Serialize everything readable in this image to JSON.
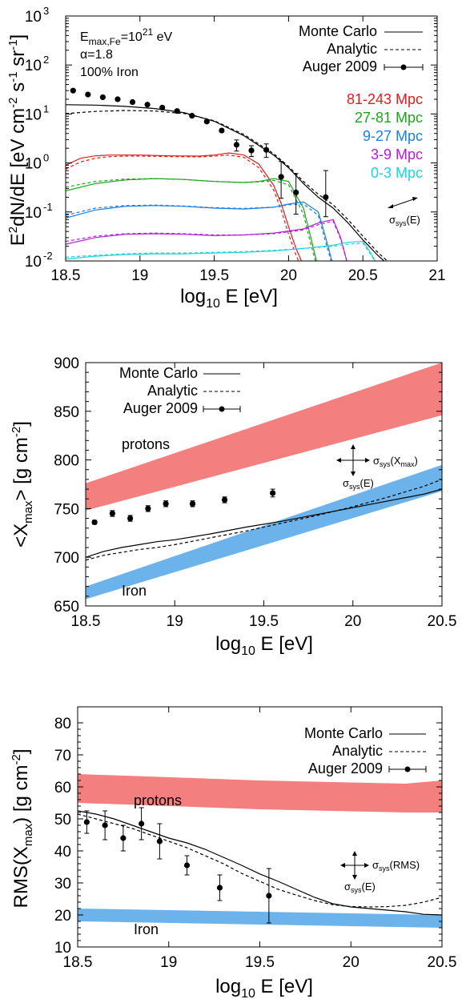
{
  "chart_data": [
    {
      "type": "line",
      "xlabel": "log10 E [eV]",
      "ylabel": "E2dN/dE [eV cm-2 s-1 sr-1]",
      "xlim": [
        18.5,
        21
      ],
      "ylim": [
        0.01,
        1000
      ],
      "yscale": "log",
      "xticks": [
        "18.5",
        "19",
        "19.5",
        "20",
        "20.5",
        "21"
      ],
      "yticks": [
        {
          "base": "10",
          "exp": "-2",
          "v": 0.01
        },
        {
          "base": "10",
          "exp": "-1",
          "v": 0.1
        },
        {
          "base": "10",
          "exp": "0",
          "v": 1
        },
        {
          "base": "10",
          "exp": "1",
          "v": 10
        },
        {
          "base": "10",
          "exp": "2",
          "v": 100
        },
        {
          "base": "10",
          "exp": "3",
          "v": 1000
        }
      ],
      "annotation": {
        "emax_base": "E",
        "emax_sub": "max,Fe",
        "emax_eq": "=10",
        "emax_exp": "21",
        "emax_unit": " eV",
        "alpha": "α=1.8",
        "composition": "100% Iron"
      },
      "legend": {
        "placement": "top-right",
        "mc": "Monte Carlo",
        "an": "Analytic",
        "auger": "Auger 2009"
      },
      "sys_label": {
        "base": "σ",
        "sub": "sys",
        "rest": "(E)"
      },
      "series": [
        {
          "name": "Monte Carlo",
          "role": "total-mc",
          "color": "#000000",
          "dash": false,
          "x": [
            18.5,
            18.7,
            18.9,
            19.1,
            19.3,
            19.5,
            19.7,
            19.9,
            20.0,
            20.1,
            20.2,
            20.3,
            20.4,
            20.5,
            20.6,
            20.7
          ],
          "y": [
            15.5,
            15.2,
            14.3,
            12.9,
            10.6,
            7.1,
            3.6,
            1.45,
            0.8,
            0.38,
            0.2,
            0.12,
            0.06,
            0.027,
            0.013,
            0.007
          ]
        },
        {
          "name": "Analytic",
          "role": "total-an",
          "color": "#000000",
          "dash": true,
          "x": [
            18.5,
            18.7,
            18.9,
            19.1,
            19.3,
            19.5,
            19.7,
            19.9,
            20.0,
            20.1,
            20.2,
            20.3,
            20.4,
            20.5,
            20.6,
            20.7
          ],
          "y": [
            10.2,
            11.3,
            11.8,
            11.5,
            10.2,
            7.3,
            3.8,
            1.55,
            0.85,
            0.42,
            0.23,
            0.14,
            0.07,
            0.032,
            0.015,
            0.008
          ]
        },
        {
          "name": "81-243 Mpc",
          "color": "#e41a1c",
          "dash": false,
          "x": [
            18.5,
            18.6,
            18.7,
            18.8,
            18.9,
            19.0,
            19.2,
            19.4,
            19.5,
            19.6,
            19.7,
            19.8,
            19.9,
            19.95,
            20.0,
            20.05,
            20.1
          ],
          "y": [
            0.9,
            1.25,
            1.4,
            1.45,
            1.45,
            1.45,
            1.4,
            1.38,
            1.45,
            1.6,
            1.45,
            0.95,
            0.35,
            0.15,
            0.05,
            0.018,
            0.008
          ]
        },
        {
          "name": "81-243 Mpc",
          "color": "#e41a1c",
          "dash": true,
          "x": [
            18.5,
            18.6,
            18.7,
            18.8,
            18.9,
            19.0,
            19.2,
            19.4,
            19.5,
            19.6,
            19.7,
            19.8,
            19.9,
            19.95,
            20.0,
            20.05,
            20.1
          ],
          "y": [
            0.75,
            1.05,
            1.25,
            1.35,
            1.38,
            1.38,
            1.35,
            1.33,
            1.38,
            1.45,
            1.3,
            0.8,
            0.28,
            0.11,
            0.035,
            0.013,
            0.006
          ]
        },
        {
          "name": "27-81 Mpc",
          "color": "#1fa21f",
          "dash": false,
          "x": [
            18.5,
            18.7,
            18.9,
            19.1,
            19.3,
            19.5,
            19.7,
            19.8,
            19.9,
            20.0,
            20.1,
            20.15,
            20.2
          ],
          "y": [
            0.27,
            0.38,
            0.45,
            0.48,
            0.46,
            0.42,
            0.4,
            0.42,
            0.48,
            0.42,
            0.12,
            0.03,
            0.007
          ]
        },
        {
          "name": "27-81 Mpc",
          "color": "#1fa21f",
          "dash": true,
          "x": [
            18.5,
            18.7,
            18.9,
            19.1,
            19.3,
            19.5,
            19.7,
            19.8,
            19.9,
            20.0,
            20.1,
            20.15,
            20.2
          ],
          "y": [
            0.32,
            0.42,
            0.47,
            0.48,
            0.46,
            0.42,
            0.4,
            0.41,
            0.44,
            0.36,
            0.09,
            0.022,
            0.006
          ]
        },
        {
          "name": "9-27 Mpc",
          "color": "#1c7fe0",
          "dash": false,
          "x": [
            18.5,
            18.7,
            18.9,
            19.1,
            19.3,
            19.5,
            19.7,
            19.9,
            20.0,
            20.1,
            20.2,
            20.25,
            20.3
          ],
          "y": [
            0.075,
            0.11,
            0.13,
            0.135,
            0.13,
            0.12,
            0.115,
            0.125,
            0.145,
            0.16,
            0.1,
            0.03,
            0.008
          ]
        },
        {
          "name": "9-27 Mpc",
          "color": "#1c7fe0",
          "dash": true,
          "x": [
            18.5,
            18.7,
            18.9,
            19.1,
            19.3,
            19.5,
            19.7,
            19.9,
            20.0,
            20.1,
            20.2,
            20.25,
            20.3
          ],
          "y": [
            0.085,
            0.12,
            0.135,
            0.138,
            0.132,
            0.122,
            0.118,
            0.126,
            0.14,
            0.145,
            0.085,
            0.024,
            0.007
          ]
        },
        {
          "name": "3-9 Mpc",
          "color": "#b01fd6",
          "dash": false,
          "x": [
            18.5,
            18.7,
            18.9,
            19.1,
            19.3,
            19.5,
            19.7,
            19.9,
            20.1,
            20.2,
            20.3,
            20.35,
            20.4
          ],
          "y": [
            0.022,
            0.03,
            0.035,
            0.036,
            0.035,
            0.033,
            0.034,
            0.037,
            0.045,
            0.06,
            0.07,
            0.03,
            0.008
          ]
        },
        {
          "name": "3-9 Mpc",
          "color": "#b01fd6",
          "dash": true,
          "x": [
            18.5,
            18.7,
            18.9,
            19.1,
            19.3,
            19.5,
            19.7,
            19.9,
            20.1,
            20.2,
            20.3,
            20.35,
            20.4
          ],
          "y": [
            0.025,
            0.032,
            0.036,
            0.037,
            0.036,
            0.034,
            0.034,
            0.036,
            0.043,
            0.055,
            0.065,
            0.028,
            0.008
          ]
        },
        {
          "name": "0-3 Mpc",
          "color": "#22d3d8",
          "dash": false,
          "x": [
            18.5,
            18.7,
            18.9,
            19.1,
            19.3,
            19.5,
            19.7,
            19.9,
            20.1,
            20.3,
            20.4,
            20.5,
            20.55,
            20.6
          ],
          "y": [
            0.011,
            0.0125,
            0.0135,
            0.014,
            0.014,
            0.0145,
            0.015,
            0.016,
            0.018,
            0.021,
            0.024,
            0.025,
            0.015,
            0.008
          ]
        },
        {
          "name": "0-3 Mpc",
          "color": "#22d3d8",
          "dash": true,
          "x": [
            18.5,
            18.7,
            18.9,
            19.1,
            19.3,
            19.5,
            19.7,
            19.9,
            20.1,
            20.3,
            20.4,
            20.5,
            20.55,
            20.6
          ],
          "y": [
            0.012,
            0.013,
            0.014,
            0.0145,
            0.0145,
            0.015,
            0.0155,
            0.0165,
            0.018,
            0.02,
            0.022,
            0.023,
            0.014,
            0.008
          ]
        }
      ],
      "auger": {
        "x": [
          18.55,
          18.65,
          18.75,
          18.85,
          18.95,
          19.05,
          19.15,
          19.25,
          19.35,
          19.45,
          19.55,
          19.65,
          19.75,
          19.85,
          19.95,
          20.05,
          20.25
        ],
        "y": [
          30,
          25,
          22,
          20,
          17.5,
          15.5,
          13.5,
          11.5,
          9.2,
          7.0,
          4.6,
          2.35,
          1.8,
          1.85,
          0.52,
          0.25,
          0.2
        ],
        "err_lo": [
          1.5,
          1.2,
          1.0,
          0.8,
          0.7,
          0.6,
          0.5,
          0.5,
          0.4,
          0.3,
          0.3,
          0.6,
          0.45,
          0.55,
          0.33,
          0.16,
          0.12
        ],
        "err_hi": [
          1.5,
          1.2,
          1.0,
          0.8,
          0.7,
          0.6,
          0.5,
          0.5,
          0.4,
          0.3,
          0.3,
          0.6,
          0.45,
          0.6,
          0.55,
          0.36,
          0.5
        ]
      }
    },
    {
      "type": "line",
      "xlabel": "log10 E [eV]",
      "ylabel": "<Xmax> [g cm-2]",
      "xlim": [
        18.5,
        20.5
      ],
      "ylim": [
        650,
        900
      ],
      "xticks": [
        "18.5",
        "19",
        "19.5",
        "20",
        "20.5"
      ],
      "yticks": [
        "650",
        "700",
        "750",
        "800",
        "850",
        "900"
      ],
      "legend": {
        "placement": "top-left",
        "mc": "Monte Carlo",
        "an": "Analytic",
        "auger": "Auger 2009"
      },
      "band_labels": {
        "protons": "protons",
        "iron": "Iron"
      },
      "sys_label": {
        "a_base": "σ",
        "a_sub": "sys",
        "a_rest": "(X",
        "a_sub2": "max",
        "a_end": ")",
        "b_base": "σ",
        "b_sub": "sys",
        "b_rest": "(E)"
      },
      "bands": [
        {
          "name": "protons",
          "color": "#f47f7f",
          "x": [
            18.5,
            20.5
          ],
          "lo": [
            748,
            846
          ],
          "hi": [
            776,
            900
          ]
        },
        {
          "name": "Iron",
          "color": "#6cb3ec",
          "x": [
            18.5,
            20.5
          ],
          "lo": [
            657,
            768
          ],
          "hi": [
            670,
            795
          ]
        }
      ],
      "series": [
        {
          "name": "Monte Carlo",
          "color": "#000000",
          "dash": false,
          "x": [
            18.5,
            18.6,
            18.7,
            18.8,
            18.9,
            19.0,
            19.2,
            19.4,
            19.6,
            19.8,
            20.0,
            20.2,
            20.4,
            20.5
          ],
          "y": [
            700,
            706,
            710,
            713,
            716,
            718,
            724,
            731,
            737,
            744,
            751,
            758,
            765,
            770
          ]
        },
        {
          "name": "Analytic",
          "color": "#000000",
          "dash": true,
          "x": [
            18.5,
            18.6,
            18.7,
            18.8,
            18.9,
            19.0,
            19.2,
            19.4,
            19.6,
            19.8,
            20.0,
            20.2,
            20.4,
            20.5
          ],
          "y": [
            697,
            702,
            705,
            708,
            710,
            713,
            720,
            727,
            735,
            743,
            752,
            762,
            773,
            780
          ]
        }
      ],
      "auger": {
        "x": [
          18.55,
          18.65,
          18.75,
          18.85,
          18.95,
          19.1,
          19.28,
          19.55
        ],
        "y": [
          736,
          745,
          740,
          750,
          755,
          755,
          759,
          766
        ],
        "err": [
          2,
          3,
          3,
          3,
          3,
          3,
          3,
          4
        ]
      }
    },
    {
      "type": "line",
      "xlabel": "log10 E [eV]",
      "ylabel": "RMS(Xmax) [g cm-2]",
      "xlim": [
        18.5,
        20.5
      ],
      "ylim": [
        10,
        85
      ],
      "xticks": [
        "18.5",
        "19",
        "19.5",
        "20",
        "20.5"
      ],
      "yticks": [
        "10",
        "20",
        "30",
        "40",
        "50",
        "60",
        "70",
        "80"
      ],
      "legend": {
        "placement": "top-right",
        "mc": "Monte Carlo",
        "an": "Analytic",
        "auger": "Auger 2009"
      },
      "band_labels": {
        "protons": "protons",
        "iron": "Iron"
      },
      "sys_label": {
        "a_base": "σ",
        "a_sub": "sys",
        "a_rest": "(RMS)",
        "b_base": "σ",
        "b_sub": "sys",
        "b_rest": "(E)"
      },
      "bands": [
        {
          "name": "protons",
          "color": "#f47f7f",
          "x": [
            18.5,
            19.5,
            20.3,
            20.5
          ],
          "lo": [
            55,
            53,
            52,
            52
          ],
          "hi": [
            64,
            62,
            61,
            62
          ]
        },
        {
          "name": "Iron",
          "color": "#6cb3ec",
          "x": [
            18.5,
            20.5
          ],
          "lo": [
            18,
            16
          ],
          "hi": [
            22,
            20
          ]
        }
      ],
      "series": [
        {
          "name": "Monte Carlo",
          "color": "#000000",
          "dash": false,
          "x": [
            18.5,
            18.6,
            18.7,
            18.8,
            18.9,
            19.0,
            19.1,
            19.2,
            19.3,
            19.4,
            19.5,
            19.6,
            19.7,
            19.8,
            19.9,
            20.0,
            20.1,
            20.2,
            20.3,
            20.4,
            20.5
          ],
          "y": [
            52.5,
            51.5,
            50,
            48,
            46,
            44,
            42.5,
            40.5,
            38,
            35.5,
            32.8,
            30.5,
            28,
            25.5,
            23.5,
            22.5,
            22,
            21.5,
            21,
            20.2,
            20
          ]
        },
        {
          "name": "Analytic",
          "color": "#000000",
          "dash": true,
          "x": [
            18.5,
            18.6,
            18.7,
            18.8,
            18.9,
            19.0,
            19.1,
            19.2,
            19.3,
            19.4,
            19.5,
            19.6,
            19.7,
            19.8,
            19.9,
            20.0,
            20.1,
            20.2,
            20.3,
            20.4,
            20.5
          ],
          "y": [
            51.5,
            50,
            48.5,
            47,
            45,
            43,
            41,
            38.5,
            36,
            33,
            30.5,
            28,
            26.2,
            24.5,
            23.2,
            22.6,
            22.5,
            22.6,
            23,
            24,
            25.5
          ]
        }
      ],
      "auger": {
        "x": [
          18.55,
          18.65,
          18.75,
          18.85,
          18.95,
          19.1,
          19.28,
          19.55
        ],
        "y": [
          49,
          48,
          44,
          48.5,
          43,
          35.5,
          28.5,
          26
        ],
        "err": [
          3.5,
          4.5,
          4,
          5,
          5.5,
          3,
          4,
          8.5
        ]
      }
    }
  ]
}
